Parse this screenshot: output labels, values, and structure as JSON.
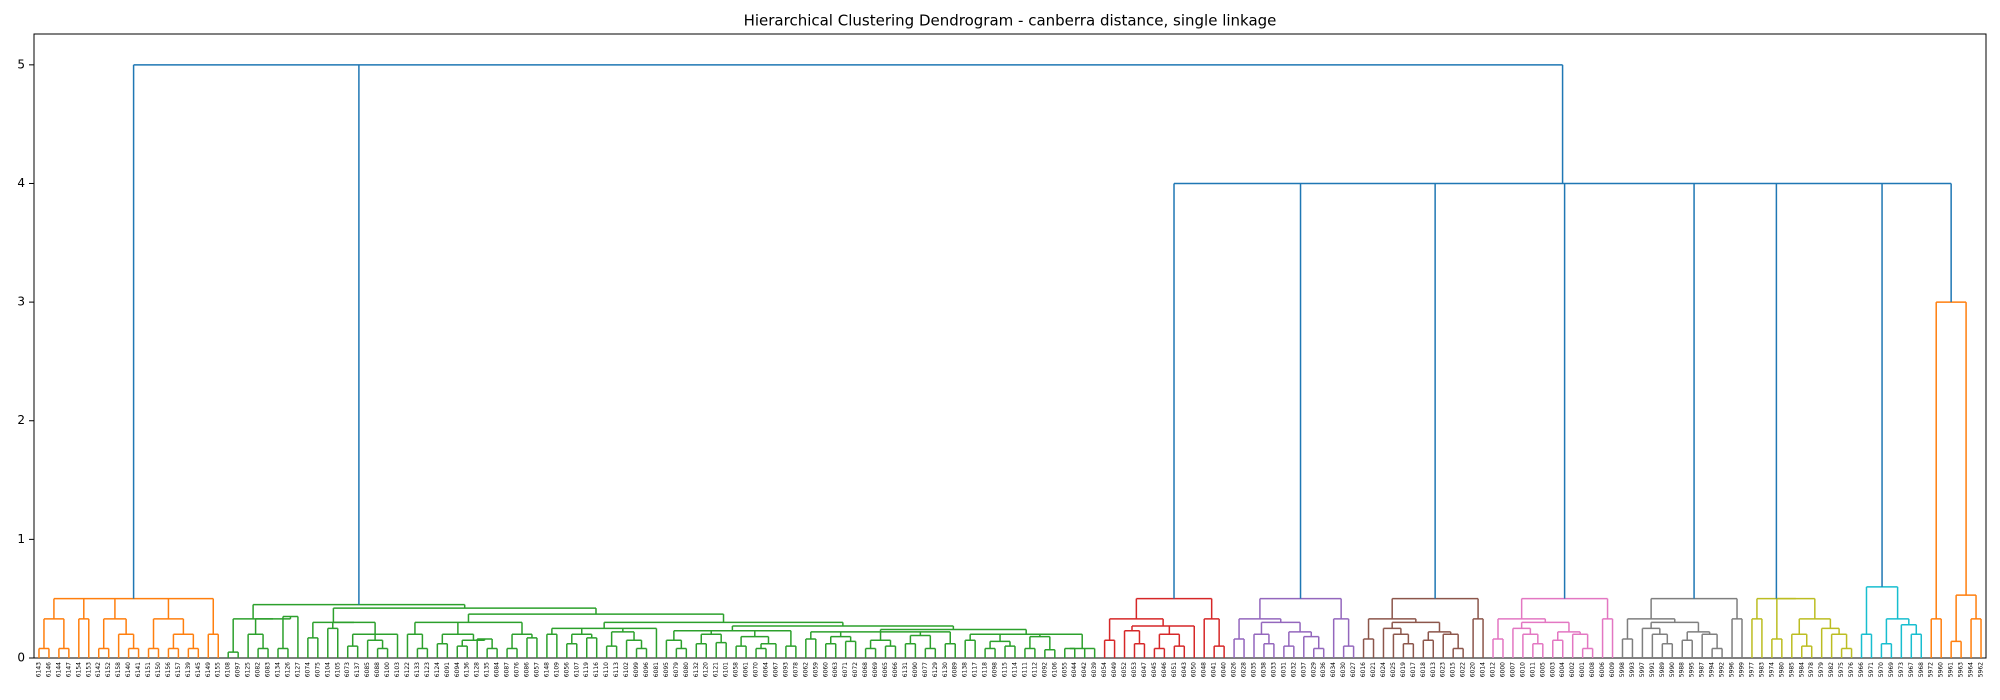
{
  "chart_data": {
    "type": "dendrogram",
    "title": "Hierarchical Clustering Dendrogram - canberra distance, single linkage",
    "ylim": [
      0,
      5.26
    ],
    "yticks": [
      0,
      1,
      2,
      3,
      4,
      5
    ],
    "color_threshold": 3.5,
    "above_color": "#1f77b4",
    "colors": [
      "#ff7f0e",
      "#2ca02c",
      "#d62728",
      "#9467bd",
      "#8c564b",
      "#e377c2",
      "#7f7f7f",
      "#bcbd22",
      "#17becf",
      "#ff7f0e"
    ],
    "leaves": [
      "6143",
      "6146",
      "6144",
      "6147",
      "6154",
      "6153",
      "6142",
      "6152",
      "6158",
      "6140",
      "6141",
      "6151",
      "6150",
      "6156",
      "6157",
      "6139",
      "6145",
      "6149",
      "6155",
      "6108",
      "6097",
      "6125",
      "6082",
      "6083",
      "6134",
      "6126",
      "6127",
      "6074",
      "6075",
      "6104",
      "6105",
      "6073",
      "6137",
      "6085",
      "6088",
      "6100",
      "6103",
      "6122",
      "6133",
      "6123",
      "6124",
      "6091",
      "6094",
      "6136",
      "6128",
      "6135",
      "6084",
      "6087",
      "6076",
      "6086",
      "6057",
      "6148",
      "6109",
      "6056",
      "6107",
      "6119",
      "6116",
      "6110",
      "6113",
      "6102",
      "6099",
      "6096",
      "6081",
      "6095",
      "6079",
      "6080",
      "6132",
      "6120",
      "6121",
      "6101",
      "6058",
      "6061",
      "6070",
      "6064",
      "6067",
      "6093",
      "6078",
      "6062",
      "6059",
      "6060",
      "6063",
      "6071",
      "6072",
      "6068",
      "6069",
      "6065",
      "6066",
      "6131",
      "6090",
      "6077",
      "6129",
      "6130",
      "6089",
      "6138",
      "6117",
      "6118",
      "6098",
      "6115",
      "6114",
      "6111",
      "6112",
      "6092",
      "6106",
      "6055",
      "6044",
      "6042",
      "6039",
      "6054",
      "6049",
      "6052",
      "6053",
      "6047",
      "6045",
      "6046",
      "6051",
      "6043",
      "6050",
      "6048",
      "6041",
      "6040",
      "6026",
      "6028",
      "6035",
      "6038",
      "6033",
      "6031",
      "6032",
      "6037",
      "6029",
      "6036",
      "6034",
      "6030",
      "6027",
      "6016",
      "6021",
      "6024",
      "6025",
      "6019",
      "6017",
      "6018",
      "6013",
      "6023",
      "6015",
      "6022",
      "6020",
      "6014",
      "6012",
      "6000",
      "6007",
      "6010",
      "6011",
      "6005",
      "6003",
      "6004",
      "6002",
      "6001",
      "6008",
      "6006",
      "6009",
      "5998",
      "5993",
      "5997",
      "5991",
      "5989",
      "5990",
      "5988",
      "5995",
      "5987",
      "5994",
      "5992",
      "5996",
      "5999",
      "5977",
      "5983",
      "5974",
      "5980",
      "5985",
      "5984",
      "5978",
      "5979",
      "5982",
      "5975",
      "5976",
      "5966",
      "5971",
      "5970",
      "5969",
      "5973",
      "5967",
      "5968",
      "5972",
      "5960",
      "5961",
      "5963",
      "5964",
      "5962"
    ],
    "tree": [
      5,
      [
        0.5,
        [
          0.33,
          [
            0.08,
            0,
            1
          ],
          [
            0.08,
            2,
            3
          ]
        ],
        [
          0.33,
          4,
          5
        ],
        [
          0.33,
          [
            0.08,
            6,
            7
          ],
          [
            0.2,
            8,
            [
              0.08,
              9,
              10
            ]
          ]
        ],
        [
          0.33,
          [
            0.08,
            11,
            12
          ],
          [
            0.2,
            [
              0.08,
              13,
              14
            ],
            [
              0.08,
              15,
              16
            ]
          ]
        ],
        [
          0.2,
          17,
          18
        ]
      ],
      [
        0.45,
        [
          0.33,
          [
            0.05,
            19,
            20
          ],
          [
            0.33,
            [
              0.2,
              21,
              [
                0.08,
                22,
                23
              ]
            ],
            [
              0.35,
              [
                0.08,
                24,
                25
              ],
              26
            ]
          ]
        ],
        [
          0.42,
          [
            0.3,
            [
              0.17,
              27,
              28
            ],
            [
              0.3,
              [
                0.25,
                29,
                30
              ],
              [
                0.2,
                [
                  0.1,
                  31,
                  32
                ],
                [
                  0.15,
                  33,
                  [
                    0.08,
                    34,
                    35
                  ]
                ],
                36
              ]
            ]
          ],
          [
            0.37,
            [
              0.3,
              [
                0.2,
                37,
                [
                  0.08,
                  38,
                  39
                ]
              ],
              [
                0.2,
                [
                  0.12,
                  40,
                  41
                ],
                [
                  0.15,
                  [
                    0.1,
                    42,
                    43
                  ],
                  [
                    0.16,
                    44,
                    [
                      0.08,
                      45,
                      46
                    ]
                  ]
                ]
              ],
              [
                0.2,
                [
                  0.08,
                  47,
                  48
                ],
                [
                  0.17,
                  49,
                  50
                ]
              ]
            ],
            [
              0.3,
              [
                0.25,
                [
                  0.2,
                  51,
                  52
                ],
                [
                  0.2,
                  [
                    0.12,
                    53,
                    54
                  ],
                  [
                    0.17,
                    55,
                    56
                  ]
                ],
                [
                  0.22,
                  [
                    0.1,
                    57,
                    58
                  ],
                  [
                    0.15,
                    59,
                    [
                      0.08,
                      60,
                      61
                    ]
                  ]
                ],
                62
              ],
              [
                0.27,
                [
                  0.23,
                  [
                    0.15,
                    63,
                    [
                      0.08,
                      64,
                      65
                    ]
                  ],
                  [
                    0.2,
                    [
                      0.12,
                      66,
                      67
                    ],
                    [
                      0.13,
                      68,
                      69
                    ]
                  ],
                  [
                    0.18,
                    [
                      0.1,
                      70,
                      71
                    ],
                    [
                      0.12,
                      [
                        0.08,
                        72,
                        73
                      ],
                      74
                    ]
                  ],
                  [
                    0.1,
                    75,
                    76
                  ]
                ],
                [
                  0.24,
                  [
                    0.22,
                    [
                      0.16,
                      77,
                      78
                    ],
                    [
                      0.18,
                      [
                        0.12,
                        79,
                        80
                      ],
                      [
                        0.14,
                        81,
                        82
                      ]
                    ],
                    [
                      0.15,
                      [
                        0.08,
                        83,
                        84
                      ],
                      [
                        0.1,
                        85,
                        86
                      ]
                    ],
                    [
                      0.19,
                      [
                        0.12,
                        87,
                        88
                      ],
                      [
                        0.08,
                        89,
                        90
                      ]
                    ],
                    [
                      0.12,
                      91,
                      92
                    ]
                  ],
                  [
                    0.2,
                    [
                      0.15,
                      93,
                      94
                    ],
                    [
                      0.14,
                      [
                        0.08,
                        95,
                        96
                      ],
                      [
                        0.1,
                        97,
                        98
                      ]
                    ],
                    [
                      0.18,
                      [
                        0.08,
                        99,
                        100
                      ],
                      [
                        0.07,
                        101,
                        102
                      ]
                    ],
                    [
                      0.08,
                      [
                        0.08,
                        103,
                        104
                      ],
                      105,
                      106
                    ]
                  ]
                ]
              ]
            ]
          ]
        ]
      ],
      [
        4,
        [
          0.5,
          [
            0.33,
            [
              0.15,
              107,
              108
            ],
            [
              0.27,
              [
                0.23,
                109,
                [
                  0.12,
                  110,
                  111
                ]
              ],
              [
                0.2,
                [
                  0.08,
                  112,
                  113
                ],
                [
                  0.1,
                  114,
                  115
                ]
              ],
              116
            ]
          ],
          [
            0.33,
            117,
            [
              0.1,
              118,
              119
            ]
          ]
        ],
        [
          0.5,
          [
            0.33,
            [
              0.16,
              120,
              121
            ],
            [
              0.3,
              [
                0.2,
                122,
                [
                  0.12,
                  123,
                  124
                ]
              ],
              [
                0.22,
                [
                  0.1,
                  125,
                  126
                ],
                [
                  0.18,
                  127,
                  [
                    0.08,
                    128,
                    129
                  ]
                ]
              ]
            ]
          ],
          [
            0.33,
            130,
            [
              0.1,
              131,
              132
            ]
          ]
        ],
        [
          0.5,
          [
            0.33,
            [
              0.16,
              133,
              134
            ],
            [
              0.3,
              [
                0.25,
                135,
                [
                  0.2,
                  136,
                  [
                    0.12,
                    137,
                    138
                  ]
                ]
              ],
              [
                0.22,
                [
                  0.15,
                  139,
                  140
                ],
                [
                  0.2,
                  141,
                  [
                    0.08,
                    142,
                    143
                  ]
                ]
              ]
            ]
          ],
          [
            0.33,
            144,
            145
          ]
        ],
        [
          0.5,
          [
            0.33,
            [
              0.16,
              146,
              147
            ],
            [
              0.3,
              [
                0.25,
                148,
                [
                  0.2,
                  149,
                  [
                    0.12,
                    150,
                    151
                  ]
                ]
              ],
              [
                0.22,
                [
                  0.15,
                  152,
                  153
                ],
                [
                  0.2,
                  154,
                  [
                    0.08,
                    155,
                    156
                  ]
                ]
              ]
            ]
          ],
          [
            0.33,
            157,
            158
          ]
        ],
        [
          0.5,
          [
            0.33,
            [
              0.16,
              159,
              160
            ],
            [
              0.3,
              [
                0.25,
                161,
                [
                  0.2,
                  162,
                  [
                    0.12,
                    163,
                    164
                  ]
                ]
              ],
              [
                0.22,
                [
                  0.15,
                  165,
                  166
                ],
                [
                  0.2,
                  167,
                  [
                    0.08,
                    168,
                    169
                  ]
                ]
              ]
            ]
          ],
          [
            0.33,
            170,
            171
          ]
        ],
        [
          0.5,
          [
            0.33,
            172,
            173
          ],
          [
            0.5,
            [
              0.16,
              174,
              175
            ],
            [
              0.33,
              [
                0.2,
                176,
                [
                  0.1,
                  177,
                  178
                ]
              ],
              [
                0.25,
                179,
                [
                  0.2,
                  180,
                  [
                    0.08,
                    181,
                    182
                  ]
                ]
              ]
            ]
          ]
        ],
        [
          0.6,
          [
            0.2,
            183,
            184
          ],
          [
            0.33,
            [
              0.12,
              185,
              186
            ],
            [
              0.28,
              187,
              [
                0.2,
                188,
                189
              ]
            ]
          ]
        ],
        [
          3,
          [
            0.33,
            190,
            191
          ],
          [
            0.53,
            [
              0.14,
              192,
              193
            ],
            [
              0.33,
              194,
              195
            ]
          ]
        ]
      ]
    ]
  }
}
